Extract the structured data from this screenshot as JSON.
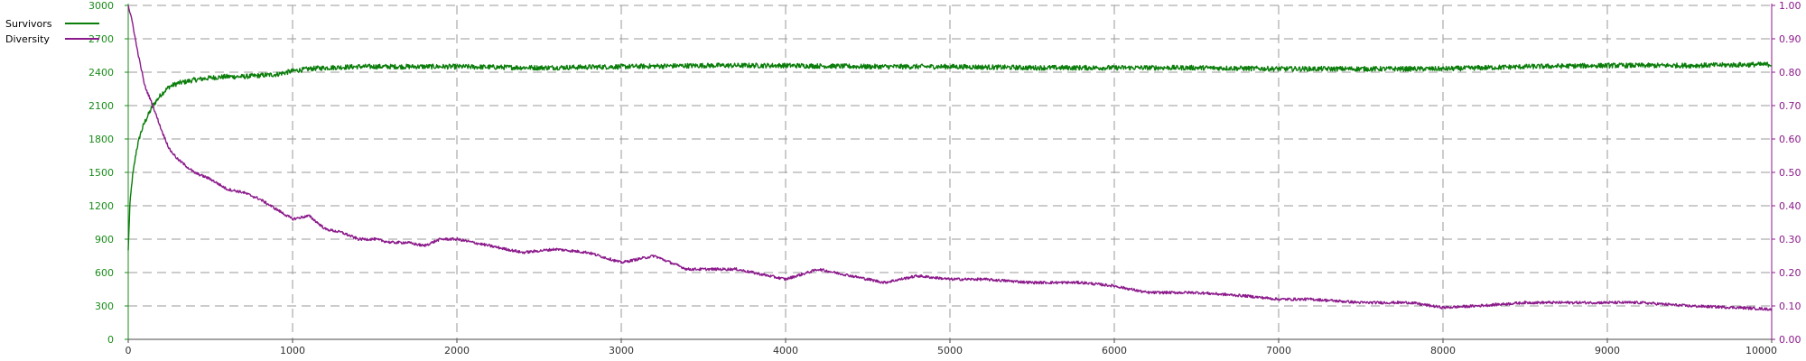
{
  "chart_data": {
    "type": "line",
    "title": "",
    "grid": true,
    "legend_placement": "top-left",
    "x_axis": {
      "range": [
        0,
        10000
      ],
      "ticks": [
        0,
        1000,
        2000,
        3000,
        4000,
        5000,
        6000,
        7000,
        8000,
        9000,
        10000
      ],
      "tick_labels": [
        "0",
        "1000",
        "2000",
        "3000",
        "4000",
        "5000",
        "6000",
        "7000",
        "8000",
        "9000",
        "10000"
      ],
      "label": ""
    },
    "y_axis_left": {
      "range": [
        0,
        3000
      ],
      "ticks": [
        0,
        300,
        600,
        900,
        1200,
        1500,
        1800,
        2100,
        2400,
        2700,
        3000
      ],
      "tick_labels": [
        "0",
        "300",
        "600",
        "900",
        "1200",
        "1500",
        "1800",
        "2100",
        "2400",
        "2700",
        "3000"
      ],
      "color": "#1a8c1a",
      "label": ""
    },
    "y_axis_right": {
      "range": [
        0,
        1.0
      ],
      "ticks": [
        0,
        0.1,
        0.2,
        0.3,
        0.4,
        0.5,
        0.6,
        0.7,
        0.8,
        0.9,
        1.0
      ],
      "tick_labels": [
        "0.00",
        "0.10",
        "0.20",
        "0.30",
        "0.40",
        "0.50",
        "0.60",
        "0.70",
        "0.80",
        "0.90",
        "1.00"
      ],
      "color": "#8b1a8b",
      "label": ""
    },
    "series": [
      {
        "name": "Survivors",
        "axis": "left",
        "color": "#0a7d0a",
        "x": [
          0,
          10,
          25,
          50,
          75,
          100,
          150,
          200,
          250,
          300,
          400,
          500,
          600,
          700,
          800,
          900,
          1000,
          1100,
          1200,
          1400,
          1600,
          1800,
          2000,
          2500,
          3000,
          3500,
          4000,
          4500,
          5000,
          5500,
          6000,
          6500,
          7000,
          7500,
          8000,
          8500,
          9000,
          9500,
          10000
        ],
        "values": [
          800,
          1200,
          1450,
          1700,
          1850,
          1950,
          2100,
          2200,
          2270,
          2300,
          2330,
          2350,
          2360,
          2360,
          2370,
          2380,
          2410,
          2430,
          2440,
          2450,
          2450,
          2450,
          2450,
          2440,
          2450,
          2460,
          2460,
          2450,
          2450,
          2440,
          2440,
          2440,
          2430,
          2430,
          2430,
          2450,
          2460,
          2460,
          2470
        ]
      },
      {
        "name": "Diversity",
        "axis": "right",
        "color": "#8b1a8b",
        "x": [
          0,
          25,
          50,
          100,
          150,
          200,
          250,
          300,
          400,
          500,
          600,
          700,
          800,
          900,
          1000,
          1100,
          1200,
          1300,
          1400,
          1500,
          1600,
          1700,
          1800,
          1900,
          2000,
          2200,
          2400,
          2600,
          2800,
          3000,
          3200,
          3400,
          3500,
          3700,
          4000,
          4200,
          4400,
          4600,
          4800,
          5000,
          5200,
          5500,
          5800,
          6000,
          6200,
          6500,
          6800,
          7000,
          7200,
          7500,
          7800,
          8000,
          8200,
          8500,
          8800,
          9000,
          9200,
          9500,
          9800,
          10000
        ],
        "values": [
          1.0,
          0.95,
          0.88,
          0.76,
          0.7,
          0.63,
          0.57,
          0.54,
          0.5,
          0.48,
          0.45,
          0.44,
          0.42,
          0.39,
          0.36,
          0.37,
          0.33,
          0.32,
          0.3,
          0.3,
          0.29,
          0.29,
          0.28,
          0.3,
          0.3,
          0.28,
          0.26,
          0.27,
          0.26,
          0.23,
          0.25,
          0.21,
          0.21,
          0.21,
          0.18,
          0.21,
          0.19,
          0.17,
          0.19,
          0.18,
          0.18,
          0.17,
          0.17,
          0.16,
          0.14,
          0.14,
          0.13,
          0.12,
          0.12,
          0.11,
          0.11,
          0.095,
          0.1,
          0.11,
          0.11,
          0.11,
          0.11,
          0.1,
          0.095,
          0.09
        ]
      }
    ]
  }
}
